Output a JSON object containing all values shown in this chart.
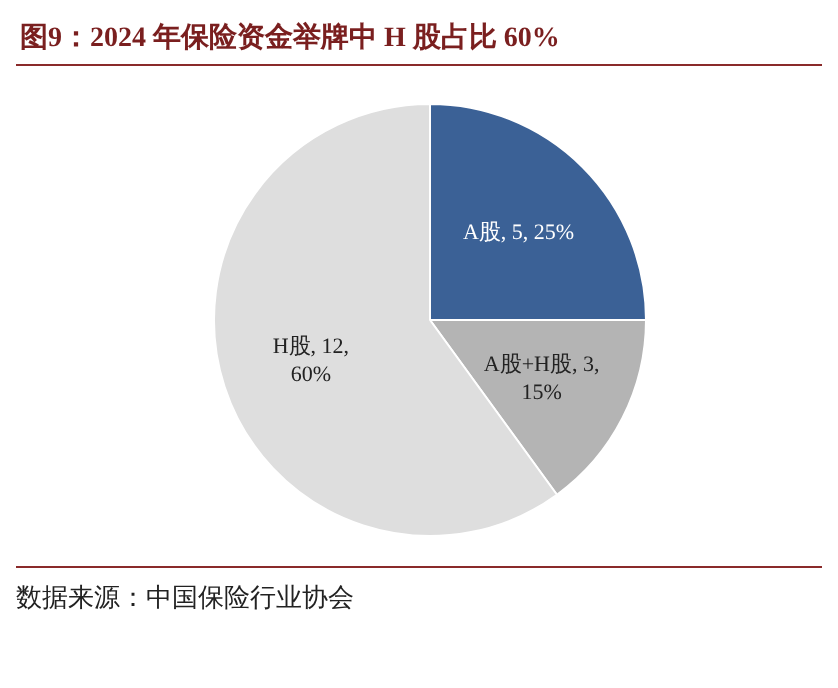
{
  "chart_data": {
    "type": "pie",
    "title": "图9：2024 年保险资金举牌中 H 股占比 60%",
    "categories": [
      "A股",
      "A股+H股",
      "H股"
    ],
    "values": [
      5,
      3,
      12
    ],
    "value_labels": [
      "5, 25%",
      "3, 15%",
      "12, 60%"
    ],
    "colors": [
      "#3b6196",
      "#b4b4b4",
      "#dedede"
    ],
    "annotations": [
      "数据来源：中国保险行业协会"
    ]
  }
}
